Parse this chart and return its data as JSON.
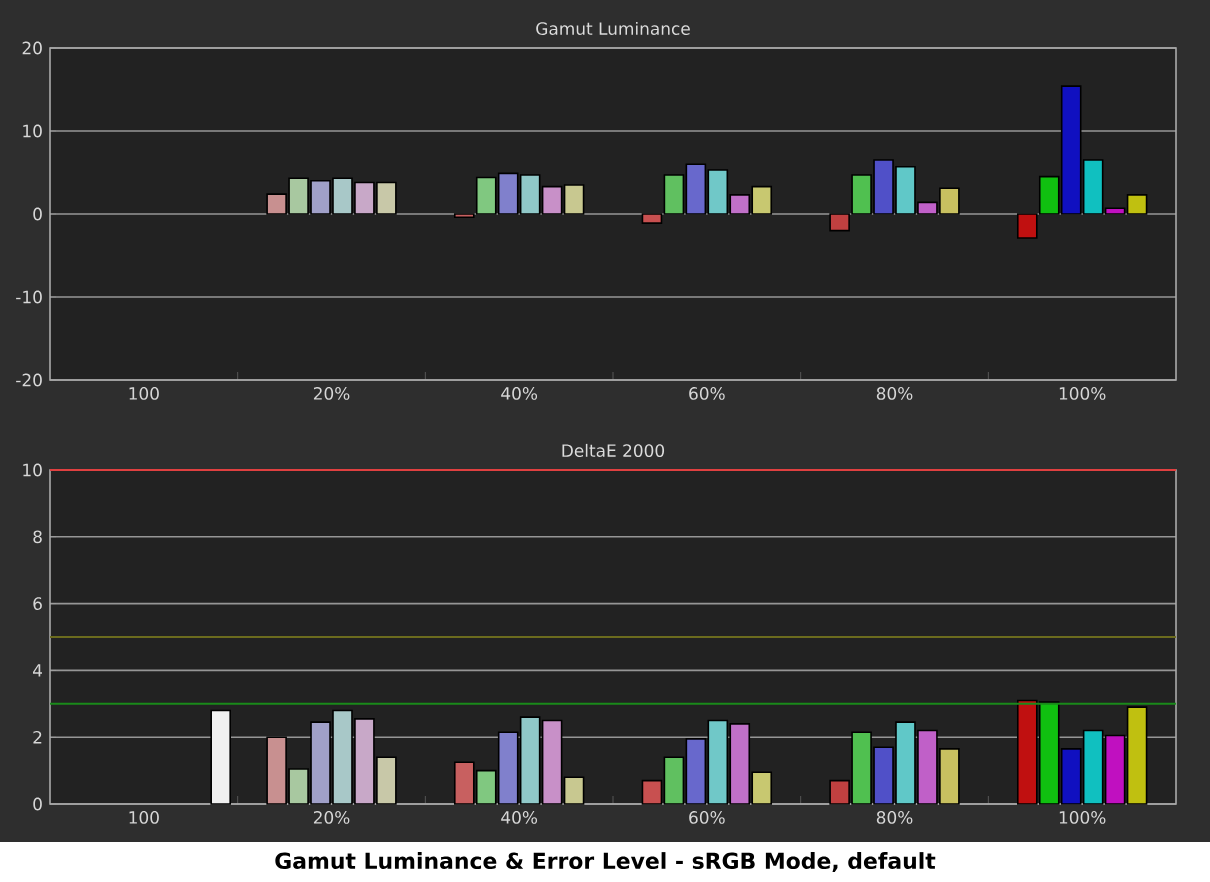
{
  "chart_data": [
    {
      "type": "bar",
      "title": "Gamut Luminance",
      "categories": [
        "100",
        "20%",
        "40%",
        "60%",
        "80%",
        "100%"
      ],
      "ylim": [
        -20,
        20
      ],
      "yticks": [
        -20,
        -10,
        0,
        10,
        20
      ],
      "grid": "y",
      "series": [
        {
          "colors": [
            null,
            "#c89090",
            "#c86060",
            "#c85050",
            "#c04040",
            "#c01010"
          ],
          "values": [
            null,
            2.4,
            -0.4,
            -1.1,
            -2.0,
            -2.9
          ]
        },
        {
          "colors": [
            null,
            "#a8c8a0",
            "#80c880",
            "#60c060",
            "#50c050",
            "#10c010"
          ],
          "values": [
            null,
            4.3,
            4.4,
            4.7,
            4.7,
            4.5
          ]
        },
        {
          "colors": [
            null,
            "#a0a0c8",
            "#8080cc",
            "#6868cc",
            "#5050c8",
            "#1010c0"
          ],
          "values": [
            null,
            4.0,
            4.9,
            6.0,
            6.5,
            15.4
          ]
        },
        {
          "colors": [
            null,
            "#a8c8c8",
            "#90c8c8",
            "#70c8c8",
            "#60c8c8",
            "#10c0c0"
          ],
          "values": [
            null,
            4.3,
            4.7,
            5.3,
            5.7,
            6.5
          ]
        },
        {
          "colors": [
            null,
            "#c8a8c8",
            "#c890c8",
            "#c070c8",
            "#c060c8",
            "#c010c0"
          ],
          "values": [
            null,
            3.8,
            3.3,
            2.3,
            1.4,
            0.7
          ]
        },
        {
          "colors": [
            null,
            "#c8c8a8",
            "#c8c890",
            "#c8c870",
            "#c8c060",
            "#c0c010"
          ],
          "values": [
            null,
            3.8,
            3.5,
            3.3,
            3.1,
            2.3
          ]
        }
      ]
    },
    {
      "type": "bar",
      "title": "DeltaE 2000",
      "categories": [
        "100",
        "20%",
        "40%",
        "60%",
        "80%",
        "100%"
      ],
      "ylim": [
        0,
        10
      ],
      "yticks": [
        0,
        2,
        4,
        6,
        8,
        10
      ],
      "grid": "y",
      "ref_lines": [
        {
          "axis": "y",
          "value": 10,
          "color": "#e04040"
        },
        {
          "axis": "y",
          "value": 5,
          "color": "#6b6b1e"
        },
        {
          "axis": "y",
          "value": 3,
          "color": "#1a8a1a"
        }
      ],
      "annotations": [
        "Gamut Luminance & Error Level - sRGB Mode, default"
      ],
      "series": [
        {
          "colors": [
            null,
            "#c89090",
            "#c86060",
            "#c85050",
            "#c04040",
            "#c01010"
          ],
          "values": [
            null,
            2.0,
            1.25,
            0.7,
            0.7,
            3.1
          ]
        },
        {
          "colors": [
            null,
            "#a8c8a0",
            "#80c880",
            "#60c060",
            "#50c050",
            "#10c010"
          ],
          "values": [
            null,
            1.05,
            1.0,
            1.4,
            2.15,
            3.05
          ]
        },
        {
          "colors": [
            null,
            "#a0a0c8",
            "#8080cc",
            "#6868cc",
            "#5050c8",
            "#1010c0"
          ],
          "values": [
            null,
            2.45,
            2.15,
            1.95,
            1.7,
            1.65
          ]
        },
        {
          "colors": [
            null,
            "#a8c8c8",
            "#90c8c8",
            "#70c8c8",
            "#60c8c8",
            "#10c0c0"
          ],
          "values": [
            null,
            2.8,
            2.6,
            2.5,
            2.45,
            2.2
          ]
        },
        {
          "colors": [
            null,
            "#c8a8c8",
            "#c890c8",
            "#c070c8",
            "#c060c8",
            "#c010c0"
          ],
          "values": [
            null,
            2.55,
            2.5,
            2.4,
            2.2,
            2.05
          ]
        },
        {
          "colors": [
            null,
            "#c8c8a8",
            "#c8c890",
            "#c8c870",
            "#c8c060",
            "#c0c010"
          ],
          "values": [
            null,
            1.4,
            0.8,
            0.95,
            1.65,
            2.9
          ]
        },
        {
          "colors": [
            "#f0f0f0",
            null,
            null,
            null,
            null,
            null
          ],
          "values": [
            2.8,
            null,
            null,
            null,
            null,
            null
          ]
        }
      ]
    }
  ]
}
